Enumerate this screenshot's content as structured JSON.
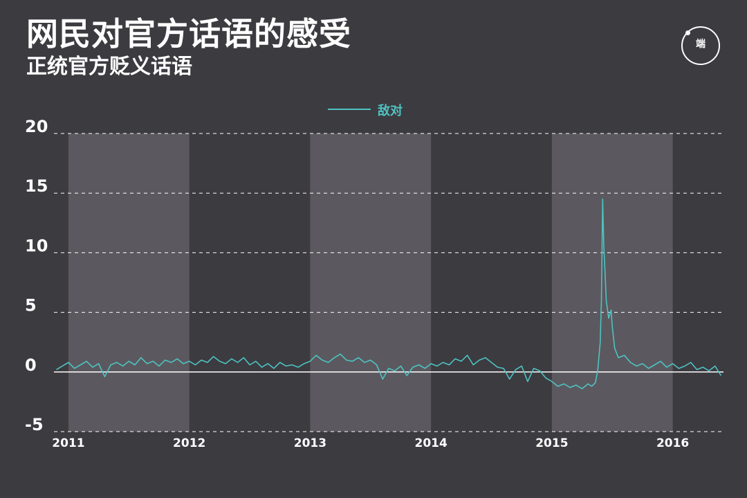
{
  "header": {
    "title": "网民对官方话语的感受",
    "subtitle": "正统官方贬义话语",
    "logo_text": "端"
  },
  "colors": {
    "background": "#3c3b40",
    "band": "#5b595f",
    "series": "#4ec3c2",
    "grid": "#ffffff"
  },
  "chart_data": {
    "type": "line",
    "title": "网民对官方话语的感受",
    "subtitle": "正统官方贬义话语",
    "xlabel": "",
    "ylabel": "",
    "xlim": [
      2010.88,
      2016.42
    ],
    "ylim": [
      -5,
      20
    ],
    "yticks": [
      "20",
      "15",
      "10",
      "5",
      "0",
      "-5"
    ],
    "ytick_values": [
      20,
      15,
      10,
      5,
      0,
      -5
    ],
    "xticks": [
      "2011",
      "2012",
      "2013",
      "2014",
      "2015",
      "2016"
    ],
    "xtick_values": [
      2011,
      2012,
      2013,
      2014,
      2015,
      2016
    ],
    "shaded_years": [
      [
        2011,
        2012
      ],
      [
        2013,
        2014
      ],
      [
        2015,
        2016
      ]
    ],
    "grid": "dashed horizontal",
    "legend_position": "top-center",
    "series": [
      {
        "name": "敌对",
        "x": [
          2010.9,
          2010.95,
          2011.0,
          2011.05,
          2011.1,
          2011.15,
          2011.2,
          2011.25,
          2011.3,
          2011.35,
          2011.4,
          2011.45,
          2011.5,
          2011.55,
          2011.6,
          2011.65,
          2011.7,
          2011.75,
          2011.8,
          2011.85,
          2011.9,
          2011.95,
          2012.0,
          2012.05,
          2012.1,
          2012.15,
          2012.2,
          2012.25,
          2012.3,
          2012.35,
          2012.4,
          2012.45,
          2012.5,
          2012.55,
          2012.6,
          2012.65,
          2012.7,
          2012.75,
          2012.8,
          2012.85,
          2012.9,
          2012.95,
          2013.0,
          2013.05,
          2013.1,
          2013.15,
          2013.2,
          2013.25,
          2013.3,
          2013.35,
          2013.4,
          2013.45,
          2013.5,
          2013.55,
          2013.6,
          2013.65,
          2013.7,
          2013.75,
          2013.8,
          2013.85,
          2013.9,
          2013.95,
          2014.0,
          2014.05,
          2014.1,
          2014.15,
          2014.2,
          2014.25,
          2014.3,
          2014.35,
          2014.4,
          2014.45,
          2014.5,
          2014.55,
          2014.6,
          2014.65,
          2014.7,
          2014.75,
          2014.8,
          2014.85,
          2014.9,
          2014.95,
          2015.0,
          2015.05,
          2015.1,
          2015.15,
          2015.2,
          2015.25,
          2015.3,
          2015.33,
          2015.36,
          2015.38,
          2015.4,
          2015.41,
          2015.42,
          2015.43,
          2015.44,
          2015.45,
          2015.47,
          2015.49,
          2015.5,
          2015.52,
          2015.55,
          2015.6,
          2015.65,
          2015.7,
          2015.75,
          2015.8,
          2015.85,
          2015.9,
          2015.95,
          2016.0,
          2016.05,
          2016.1,
          2016.15,
          2016.2,
          2016.25,
          2016.3,
          2016.35,
          2016.4
        ],
        "y": [
          0.2,
          0.5,
          0.8,
          0.3,
          0.6,
          0.9,
          0.4,
          0.7,
          -0.4,
          0.6,
          0.8,
          0.5,
          0.9,
          0.6,
          1.2,
          0.7,
          0.9,
          0.5,
          1.0,
          0.8,
          1.1,
          0.7,
          0.9,
          0.6,
          1.0,
          0.8,
          1.3,
          0.9,
          0.7,
          1.1,
          0.8,
          1.2,
          0.6,
          0.9,
          0.4,
          0.7,
          0.3,
          0.8,
          0.5,
          0.6,
          0.4,
          0.7,
          0.9,
          1.4,
          1.0,
          0.8,
          1.2,
          1.5,
          1.0,
          0.9,
          1.2,
          0.8,
          1.0,
          0.6,
          -0.6,
          0.3,
          0.1,
          0.5,
          -0.3,
          0.4,
          0.6,
          0.3,
          0.7,
          0.5,
          0.8,
          0.6,
          1.1,
          0.9,
          1.4,
          0.6,
          1.0,
          1.2,
          0.8,
          0.4,
          0.3,
          -0.6,
          0.2,
          0.5,
          -0.8,
          0.3,
          0.1,
          -0.5,
          -0.8,
          -1.2,
          -1.0,
          -1.3,
          -1.1,
          -1.4,
          -1.0,
          -1.2,
          -0.9,
          0.2,
          2.5,
          6.0,
          14.5,
          10.5,
          8.3,
          6.0,
          4.5,
          5.2,
          3.8,
          2.0,
          1.2,
          1.4,
          0.8,
          0.5,
          0.7,
          0.3,
          0.6,
          0.9,
          0.4,
          0.7,
          0.3,
          0.5,
          0.8,
          0.2,
          0.4,
          0.1,
          0.5,
          -0.3
        ]
      }
    ]
  }
}
